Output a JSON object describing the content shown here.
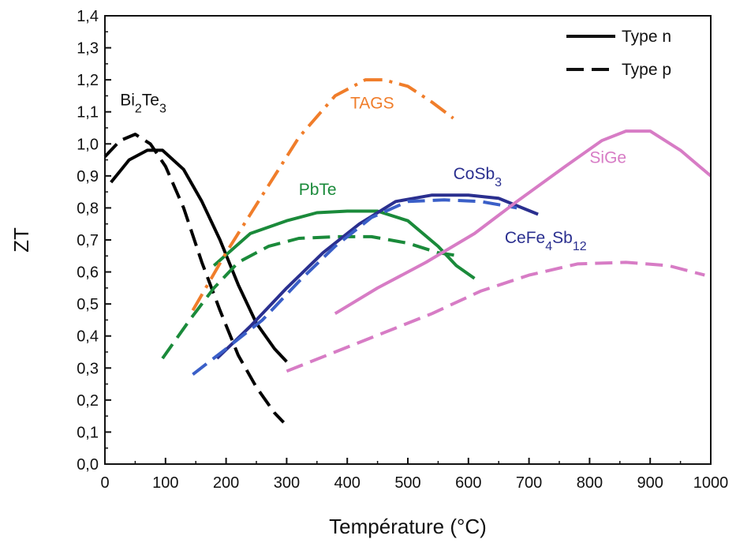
{
  "chart_data": {
    "type": "line",
    "title": "",
    "xlabel": "Température (°C)",
    "ylabel": "ZT",
    "xlim": [
      0,
      1000
    ],
    "ylim": [
      0,
      1.4
    ],
    "x_ticks": [
      "0",
      "100",
      "200",
      "300",
      "400",
      "500",
      "600",
      "700",
      "800",
      "900",
      "1000"
    ],
    "y_ticks": [
      "0,0",
      "0,1",
      "0,2",
      "0,3",
      "0,4",
      "0,5",
      "0,6",
      "0,7",
      "0,8",
      "0,9",
      "1,0",
      "1,1",
      "1,2",
      "1,3",
      "1,4"
    ],
    "grid": false,
    "legend": {
      "position": "top-right",
      "entries": [
        {
          "label": "Type n",
          "style": "solid"
        },
        {
          "label": "Type p",
          "style": "dashed"
        }
      ]
    },
    "series": [
      {
        "name": "Bi2Te3",
        "material": "Bi2Te3",
        "type": "n",
        "style": "solid",
        "color": "#000000",
        "x": [
          10,
          40,
          70,
          95,
          130,
          160,
          190,
          220,
          250,
          280,
          300
        ],
        "y": [
          0.88,
          0.95,
          0.98,
          0.98,
          0.92,
          0.82,
          0.7,
          0.56,
          0.44,
          0.36,
          0.32
        ]
      },
      {
        "name": "Bi2Te3",
        "material": "Bi2Te3",
        "type": "p",
        "style": "dashed",
        "color": "#000000",
        "x": [
          0,
          25,
          50,
          75,
          100,
          130,
          160,
          190,
          220,
          250,
          280,
          295
        ],
        "y": [
          0.96,
          1.01,
          1.03,
          1.0,
          0.93,
          0.8,
          0.63,
          0.48,
          0.34,
          0.24,
          0.16,
          0.13
        ]
      },
      {
        "name": "PbTe",
        "material": "PbTe",
        "type": "n",
        "style": "solid",
        "color": "#1a8a3a",
        "x": [
          180,
          240,
          300,
          350,
          400,
          450,
          500,
          550,
          580,
          610
        ],
        "y": [
          0.62,
          0.72,
          0.76,
          0.785,
          0.79,
          0.79,
          0.76,
          0.68,
          0.62,
          0.58
        ]
      },
      {
        "name": "PbTe",
        "material": "PbTe",
        "type": "p",
        "style": "dashed",
        "color": "#1a8a3a",
        "x": [
          95,
          140,
          180,
          220,
          270,
          320,
          380,
          440,
          500,
          550,
          585
        ],
        "y": [
          0.33,
          0.45,
          0.55,
          0.63,
          0.68,
          0.705,
          0.71,
          0.71,
          0.69,
          0.66,
          0.65
        ]
      },
      {
        "name": "TAGS",
        "material": "TAGS",
        "type": "p",
        "style": "dashdot",
        "color": "#f07d2a",
        "x": [
          145,
          200,
          260,
          320,
          380,
          430,
          460,
          500,
          540,
          575
        ],
        "y": [
          0.48,
          0.66,
          0.84,
          1.02,
          1.15,
          1.2,
          1.2,
          1.18,
          1.13,
          1.08
        ]
      },
      {
        "name": "CoSb3",
        "material": "CoSb3",
        "type": "n",
        "style": "solid",
        "color": "#2a2f8f",
        "x": [
          185,
          240,
          300,
          360,
          420,
          480,
          540,
          600,
          650,
          715
        ],
        "y": [
          0.33,
          0.43,
          0.55,
          0.66,
          0.75,
          0.82,
          0.84,
          0.84,
          0.83,
          0.78
        ]
      },
      {
        "name": "CeFe4Sb12",
        "material": "CeFe4Sb12",
        "type": "p",
        "style": "dashed",
        "color": "#3a5fc8",
        "x": [
          145,
          200,
          260,
          320,
          380,
          440,
          500,
          560,
          620,
          680
        ],
        "y": [
          0.28,
          0.36,
          0.45,
          0.57,
          0.68,
          0.77,
          0.82,
          0.825,
          0.82,
          0.8
        ]
      },
      {
        "name": "SiGe",
        "material": "SiGe",
        "type": "n",
        "style": "solid",
        "color": "#d77cc5",
        "x": [
          380,
          450,
          530,
          610,
          680,
          760,
          820,
          860,
          900,
          950,
          1000
        ],
        "y": [
          0.47,
          0.55,
          0.63,
          0.72,
          0.82,
          0.93,
          1.01,
          1.04,
          1.04,
          0.98,
          0.9
        ]
      },
      {
        "name": "SiGe",
        "material": "SiGe",
        "type": "p",
        "style": "dashed",
        "color": "#d77cc5",
        "x": [
          300,
          380,
          460,
          540,
          620,
          700,
          780,
          860,
          930,
          990
        ],
        "y": [
          0.29,
          0.35,
          0.41,
          0.47,
          0.54,
          0.59,
          0.625,
          0.63,
          0.62,
          0.59
        ]
      }
    ],
    "labels": [
      {
        "parts": [
          {
            "t": "Bi"
          },
          {
            "t": "2",
            "sub": true
          },
          {
            "t": "Te"
          },
          {
            "t": "3",
            "sub": true
          }
        ],
        "x": 25,
        "y": 1.12,
        "color": "#111111"
      },
      {
        "parts": [
          {
            "t": "TAGS"
          }
        ],
        "x": 405,
        "y": 1.11,
        "color": "#f07d2a"
      },
      {
        "parts": [
          {
            "t": "PbTe"
          }
        ],
        "x": 320,
        "y": 0.84,
        "color": "#1a8a3a"
      },
      {
        "parts": [
          {
            "t": "CoSb"
          },
          {
            "t": "3",
            "sub": true
          }
        ],
        "x": 575,
        "y": 0.89,
        "color": "#2a2f8f"
      },
      {
        "parts": [
          {
            "t": "CeFe"
          },
          {
            "t": "4",
            "sub": true
          },
          {
            "t": "Sb"
          },
          {
            "t": "12",
            "sub": true
          }
        ],
        "x": 660,
        "y": 0.69,
        "color": "#2a2f8f"
      },
      {
        "parts": [
          {
            "t": "SiGe"
          }
        ],
        "x": 800,
        "y": 0.94,
        "color": "#d77cc5"
      }
    ]
  }
}
